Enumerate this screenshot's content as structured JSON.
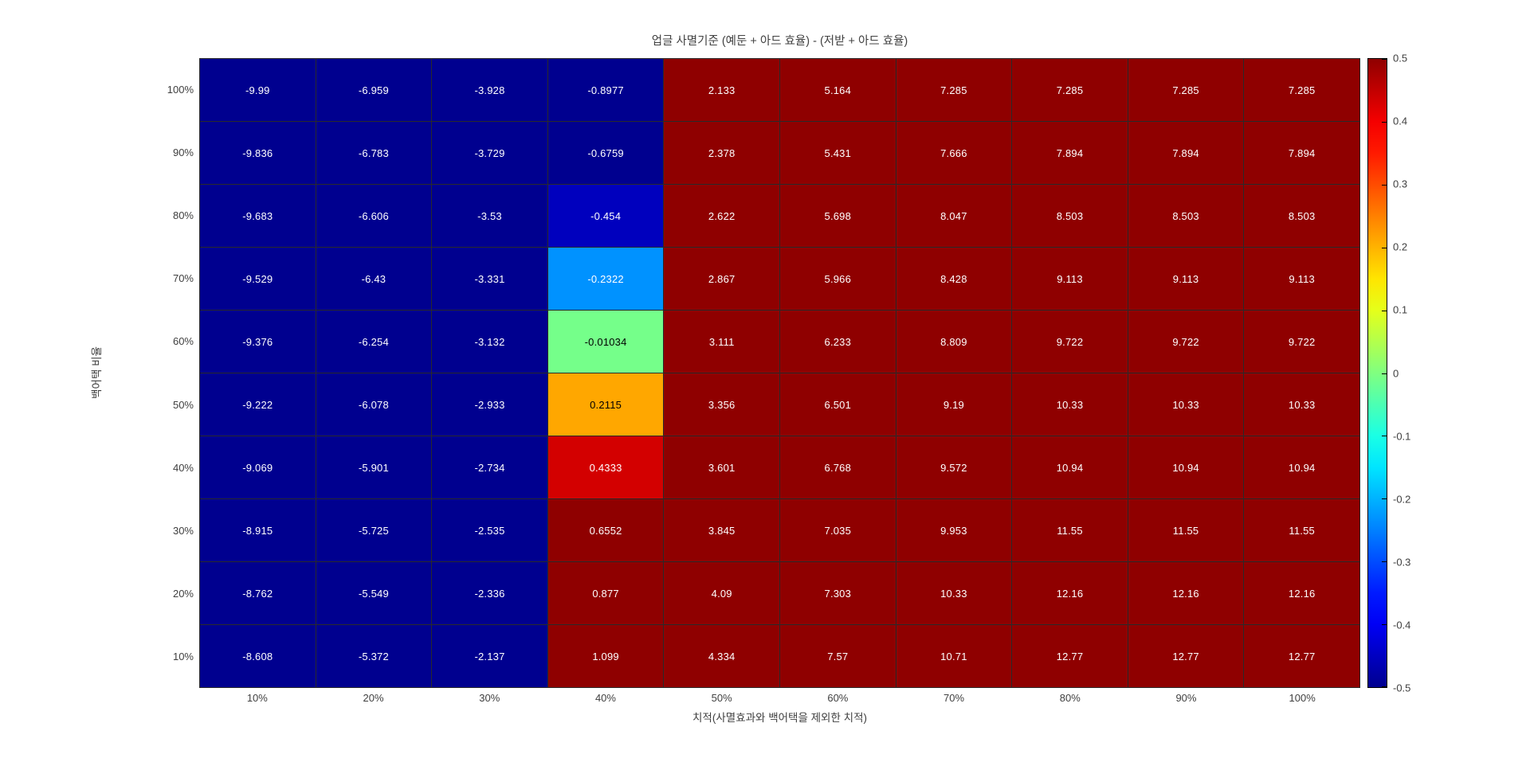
{
  "figure": {
    "background": "#FFFFFF"
  },
  "chart_data": {
    "type": "heatmap",
    "title": "업글 사멸기준  (예둔 + 아드 효율) - (저받 + 아드 효율)",
    "xlabel": "치적(사멸효과와 백어택을 제외한 치적)",
    "ylabel": "백어택 비율",
    "x_categories": [
      "10%",
      "20%",
      "30%",
      "40%",
      "50%",
      "60%",
      "70%",
      "80%",
      "90%",
      "100%"
    ],
    "y_categories": [
      "100%",
      "90%",
      "80%",
      "70%",
      "60%",
      "50%",
      "40%",
      "30%",
      "20%",
      "10%"
    ],
    "values_display": [
      [
        "-9.99",
        "-6.959",
        "-3.928",
        "-0.8977",
        "2.133",
        "5.164",
        "7.285",
        "7.285",
        "7.285",
        "7.285"
      ],
      [
        "-9.836",
        "-6.783",
        "-3.729",
        "-0.6759",
        "2.378",
        "5.431",
        "7.666",
        "7.894",
        "7.894",
        "7.894"
      ],
      [
        "-9.683",
        "-6.606",
        "-3.53",
        "-0.454",
        "2.622",
        "5.698",
        "8.047",
        "8.503",
        "8.503",
        "8.503"
      ],
      [
        "-9.529",
        "-6.43",
        "-3.331",
        "-0.2322",
        "2.867",
        "5.966",
        "8.428",
        "9.113",
        "9.113",
        "9.113"
      ],
      [
        "-9.376",
        "-6.254",
        "-3.132",
        "-0.01034",
        "3.111",
        "6.233",
        "8.809",
        "9.722",
        "9.722",
        "9.722"
      ],
      [
        "-9.222",
        "-6.078",
        "-2.933",
        "0.2115",
        "3.356",
        "6.501",
        "9.19",
        "10.33",
        "10.33",
        "10.33"
      ],
      [
        "-9.069",
        "-5.901",
        "-2.734",
        "0.4333",
        "3.601",
        "6.768",
        "9.572",
        "10.94",
        "10.94",
        "10.94"
      ],
      [
        "-8.915",
        "-5.725",
        "-2.535",
        "0.6552",
        "3.845",
        "7.035",
        "9.953",
        "11.55",
        "11.55",
        "11.55"
      ],
      [
        "-8.762",
        "-5.549",
        "-2.336",
        "0.877",
        "4.09",
        "7.303",
        "10.33",
        "12.16",
        "12.16",
        "12.16"
      ],
      [
        "-8.608",
        "-5.372",
        "-2.137",
        "1.099",
        "4.334",
        "7.57",
        "10.71",
        "12.77",
        "12.77",
        "12.77"
      ]
    ],
    "colormap": "jet",
    "clim": [
      -0.5,
      0.5
    ],
    "colorbar_tick_labels": [
      "0.5",
      "0.4",
      "0.3",
      "0.2",
      "0.1",
      "0",
      "-0.1",
      "-0.2",
      "-0.3",
      "-0.4",
      "-0.5"
    ],
    "colorbar_position": "right",
    "grid": true
  },
  "colors": {
    "background": "#FFFFFF",
    "grid_line": "#2A2A2A",
    "min_color": "#00008F",
    "max_color": "#8F0000",
    "cell_text_light": "#FFFFFF",
    "cell_text_dark": "#000000",
    "tick_label": "#3F3F3F",
    "title_color": "#424242"
  }
}
